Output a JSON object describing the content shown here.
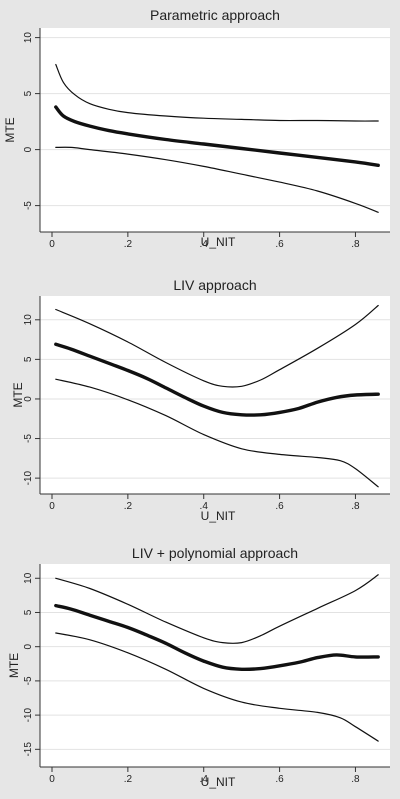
{
  "chart_data": [
    {
      "type": "line",
      "title": "Parametric approach",
      "xlabel": "U_NIT",
      "ylabel": "MTE",
      "xlim": [
        0,
        0.87
      ],
      "ylim": [
        -7,
        10.5
      ],
      "xticks": [
        0,
        0.2,
        0.4,
        0.6,
        0.8
      ],
      "xtick_labels": [
        "0",
        ".2",
        ".4",
        ".6",
        ".8"
      ],
      "yticks": [
        -5,
        0,
        5,
        10
      ],
      "ytick_labels": [
        "-5",
        "0",
        "5",
        "10"
      ],
      "grid": true,
      "series": [
        {
          "role": "upper",
          "x": [
            0.01,
            0.03,
            0.06,
            0.1,
            0.15,
            0.2,
            0.3,
            0.4,
            0.5,
            0.6,
            0.7,
            0.8,
            0.86
          ],
          "y": [
            7.6,
            6.0,
            4.9,
            4.1,
            3.6,
            3.3,
            3.0,
            2.8,
            2.7,
            2.6,
            2.6,
            2.55,
            2.55
          ]
        },
        {
          "role": "estimate",
          "x": [
            0.01,
            0.03,
            0.06,
            0.1,
            0.15,
            0.2,
            0.3,
            0.4,
            0.5,
            0.6,
            0.7,
            0.8,
            0.86
          ],
          "y": [
            3.8,
            3.0,
            2.5,
            2.1,
            1.7,
            1.4,
            0.9,
            0.5,
            0.1,
            -0.3,
            -0.7,
            -1.1,
            -1.4
          ]
        },
        {
          "role": "lower",
          "x": [
            0.01,
            0.05,
            0.1,
            0.2,
            0.3,
            0.4,
            0.5,
            0.6,
            0.7,
            0.8,
            0.86
          ],
          "y": [
            0.2,
            0.2,
            0.0,
            -0.4,
            -0.9,
            -1.5,
            -2.2,
            -2.9,
            -3.7,
            -4.8,
            -5.6
          ]
        }
      ]
    },
    {
      "type": "line",
      "title": "LIV approach",
      "xlabel": "U_NIT",
      "ylabel": "MTE",
      "xlim": [
        0,
        0.87
      ],
      "ylim": [
        -11.5,
        12.5
      ],
      "xticks": [
        0,
        0.2,
        0.4,
        0.6,
        0.8
      ],
      "xtick_labels": [
        "0",
        ".2",
        ".4",
        ".6",
        ".8"
      ],
      "yticks": [
        -10,
        -5,
        0,
        5,
        10
      ],
      "ytick_labels": [
        "-10",
        "-5",
        "0",
        "5",
        "10"
      ],
      "grid": true,
      "series": [
        {
          "role": "upper",
          "x": [
            0.01,
            0.1,
            0.2,
            0.3,
            0.4,
            0.45,
            0.5,
            0.55,
            0.6,
            0.7,
            0.8,
            0.86
          ],
          "y": [
            11.3,
            9.5,
            7.2,
            4.6,
            2.3,
            1.6,
            1.6,
            2.4,
            3.7,
            6.4,
            9.4,
            11.8
          ]
        },
        {
          "role": "estimate",
          "x": [
            0.01,
            0.05,
            0.1,
            0.15,
            0.2,
            0.25,
            0.3,
            0.35,
            0.4,
            0.45,
            0.5,
            0.55,
            0.6,
            0.65,
            0.7,
            0.75,
            0.8,
            0.86
          ],
          "y": [
            6.9,
            6.3,
            5.4,
            4.5,
            3.6,
            2.6,
            1.4,
            0.2,
            -0.9,
            -1.7,
            -2.0,
            -2.0,
            -1.7,
            -1.2,
            -0.4,
            0.2,
            0.5,
            0.6
          ]
        },
        {
          "role": "lower",
          "x": [
            0.01,
            0.1,
            0.2,
            0.3,
            0.4,
            0.5,
            0.6,
            0.7,
            0.76,
            0.8,
            0.86
          ],
          "y": [
            2.5,
            1.5,
            -0.1,
            -2.1,
            -4.5,
            -6.3,
            -7.0,
            -7.4,
            -7.8,
            -8.8,
            -11.1
          ]
        }
      ]
    },
    {
      "type": "line",
      "title": "LIV +  polynomial approach",
      "xlabel": "U_NIT",
      "ylabel": "MTE",
      "xlim": [
        0,
        0.87
      ],
      "ylim": [
        -17,
        11.5
      ],
      "xticks": [
        0,
        0.2,
        0.4,
        0.6,
        0.8
      ],
      "xtick_labels": [
        "0",
        ".2",
        ".4",
        ".6",
        ".8"
      ],
      "yticks": [
        -15,
        -10,
        -5,
        0,
        5,
        10
      ],
      "ytick_labels": [
        "-15",
        "-10",
        "-5",
        "0",
        "5",
        "10"
      ],
      "grid": true,
      "series": [
        {
          "role": "upper",
          "x": [
            0.01,
            0.1,
            0.2,
            0.3,
            0.4,
            0.45,
            0.5,
            0.55,
            0.6,
            0.7,
            0.8,
            0.86
          ],
          "y": [
            10.0,
            8.5,
            6.2,
            3.6,
            1.3,
            0.6,
            0.6,
            1.6,
            3.0,
            5.6,
            8.2,
            10.5
          ]
        },
        {
          "role": "estimate",
          "x": [
            0.01,
            0.05,
            0.1,
            0.15,
            0.2,
            0.25,
            0.3,
            0.35,
            0.4,
            0.45,
            0.5,
            0.55,
            0.6,
            0.65,
            0.7,
            0.75,
            0.8,
            0.86
          ],
          "y": [
            6.0,
            5.5,
            4.6,
            3.7,
            2.8,
            1.7,
            0.5,
            -0.9,
            -2.1,
            -3.0,
            -3.3,
            -3.2,
            -2.8,
            -2.3,
            -1.6,
            -1.2,
            -1.5,
            -1.5
          ]
        },
        {
          "role": "lower",
          "x": [
            0.01,
            0.1,
            0.2,
            0.3,
            0.4,
            0.5,
            0.6,
            0.7,
            0.76,
            0.8,
            0.86
          ],
          "y": [
            2.0,
            1.0,
            -0.9,
            -3.3,
            -6.1,
            -8.1,
            -9.0,
            -9.6,
            -10.4,
            -11.7,
            -13.8
          ]
        }
      ]
    }
  ]
}
